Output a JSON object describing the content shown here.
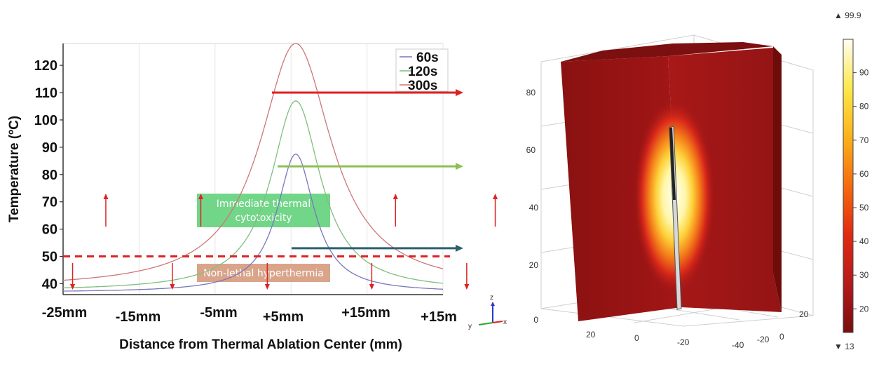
{
  "chart_data": [
    {
      "type": "line",
      "title": "",
      "xlabel": "Distance from Thermal Ablation Center (mm)",
      "ylabel": "Temperature (ºC)",
      "xlim": [
        -25,
        15
      ],
      "ylim": [
        36,
        128
      ],
      "x_tick_labels": [
        "-25mm",
        "-15mm",
        "-5mm",
        "+5mm",
        "+15mm",
        "+15m"
      ],
      "y_ticks": [
        40,
        50,
        60,
        70,
        80,
        90,
        100,
        110,
        120
      ],
      "y_tick_labels": [
        "40",
        "50",
        "60",
        "70",
        "80",
        "90",
        "100",
        "110",
        "120"
      ],
      "legend_position": "top-right",
      "series": [
        {
          "name": "60s",
          "color": "#7777bb",
          "peak": 87.5,
          "baseline": 36.8,
          "width": 2.4
        },
        {
          "name": "120s",
          "color": "#7fbf7f",
          "peak": 107,
          "baseline": 37.3,
          "width": 3.2
        },
        {
          "name": "300s",
          "color": "#cc7777",
          "peak": 128,
          "baseline": 38.2,
          "width": 4.6
        }
      ],
      "peak_x": -0.5,
      "threshold": {
        "y": 50,
        "color": "#dd2222"
      },
      "zones": {
        "thermal": {
          "text_lines": [
            "Immediate thermal",
            "cytotoxicity"
          ],
          "color": "#72d689"
        },
        "hyper": {
          "text_lines": [
            "Non-lethal hyperthermia"
          ],
          "color": "#d9a48a"
        }
      },
      "up_arrows_x": [
        -20.5,
        -10.5,
        10,
        20.5
      ],
      "down_arrows_x": [
        -24,
        -13.5,
        -3.5,
        7.5,
        17.5
      ],
      "level_arrows": [
        {
          "y": 110,
          "color": "#dd2222"
        },
        {
          "y": 83,
          "color": "#8cc152"
        },
        {
          "y": 53,
          "color": "#2b6170"
        }
      ]
    },
    {
      "type": "heatmap",
      "z_ticks": [
        "0",
        "20",
        "40",
        "60",
        "80"
      ],
      "y_ticks": [
        "20",
        "0",
        "-20",
        "-40"
      ],
      "x_ticks": [
        "-20",
        "0",
        "20"
      ],
      "axis_triad": [
        "x",
        "y",
        "z"
      ],
      "colorbar": {
        "max_label": "▲ 99.9",
        "min_label": "▼ 13",
        "ticks": [
          "90",
          "80",
          "70",
          "60",
          "50",
          "40",
          "30",
          "20"
        ],
        "stops": [
          "#7a0d0d",
          "#b51a1a",
          "#e02a12",
          "#f56a0f",
          "#fbb21a",
          "#fde84a",
          "#fffdf2"
        ]
      }
    }
  ]
}
